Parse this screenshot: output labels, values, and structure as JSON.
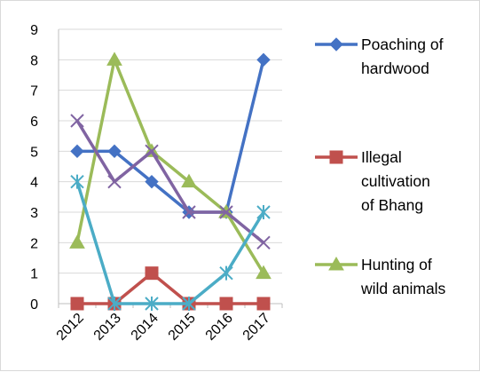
{
  "chart_data": {
    "type": "line",
    "title": "",
    "xlabel": "",
    "ylabel": "",
    "categories": [
      "2012",
      "2013",
      "2014",
      "2015",
      "2016",
      "2017"
    ],
    "ylim": [
      0,
      9
    ],
    "yticks": [
      0,
      1,
      2,
      3,
      4,
      5,
      6,
      7,
      8,
      9
    ],
    "grid": "horizontal",
    "legend_position": "right",
    "series": [
      {
        "name": "Poaching of hardwood",
        "legend_lines": [
          "Poaching of",
          "hardwood"
        ],
        "color": "#4472C4",
        "marker": "diamond",
        "values": [
          5,
          5,
          4,
          3,
          3,
          8
        ]
      },
      {
        "name": "Illegal cultivation of Bhang",
        "legend_lines": [
          "Illegal",
          "cultivation",
          "of Bhang"
        ],
        "color": "#C0504D",
        "marker": "square",
        "values": [
          0,
          0,
          1,
          0,
          0,
          0
        ]
      },
      {
        "name": "Hunting of wild animals",
        "legend_lines": [
          "Hunting of",
          "wild animals"
        ],
        "color": "#9BBB59",
        "marker": "triangle",
        "values": [
          2,
          8,
          5,
          4,
          3,
          1
        ]
      },
      {
        "color": "#8064A2",
        "marker": "x",
        "values": [
          6,
          4,
          5,
          3,
          3,
          2
        ]
      },
      {
        "color": "#4BACC6",
        "marker": "star",
        "values": [
          4,
          0,
          0,
          0,
          1,
          3
        ]
      }
    ]
  }
}
